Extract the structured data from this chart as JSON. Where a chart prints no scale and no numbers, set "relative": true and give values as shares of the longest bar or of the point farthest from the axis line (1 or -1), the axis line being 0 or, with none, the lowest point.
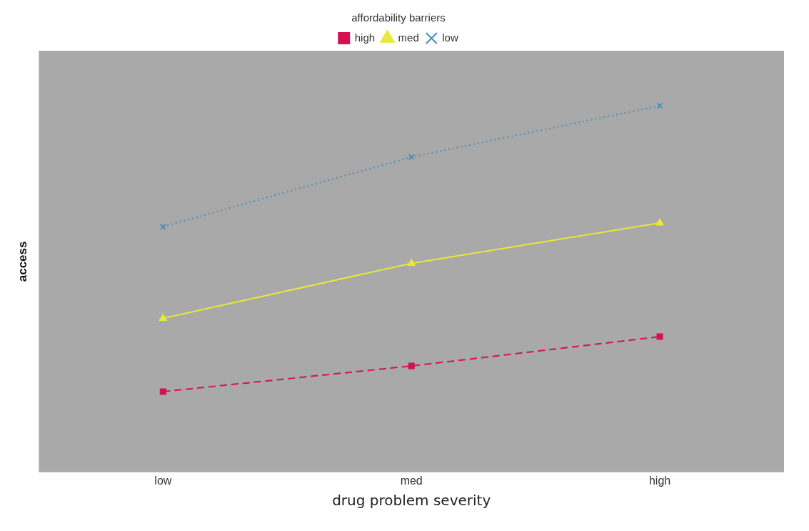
{
  "chart_data": {
    "type": "line",
    "xlabel": "drug problem severity",
    "ylabel": "access",
    "legend_title": "affordability barriers",
    "legend": "top",
    "relative": true,
    "grid": false,
    "categories": [
      "low",
      "med",
      "high"
    ],
    "series": [
      {
        "name": "high",
        "color": "#d6114f",
        "values": [
          0.22,
          0.29,
          0.37
        ],
        "marker": "square",
        "line_style": "dashed"
      },
      {
        "name": "med",
        "color": "#e8e83a",
        "values": [
          0.42,
          0.57,
          0.68
        ],
        "marker": "triangle",
        "line_style": "solid"
      },
      {
        "name": "low",
        "color": "#4a8fb8",
        "values": [
          0.67,
          0.86,
          1
        ],
        "marker": "cross",
        "line_style": "dotted"
      }
    ]
  }
}
